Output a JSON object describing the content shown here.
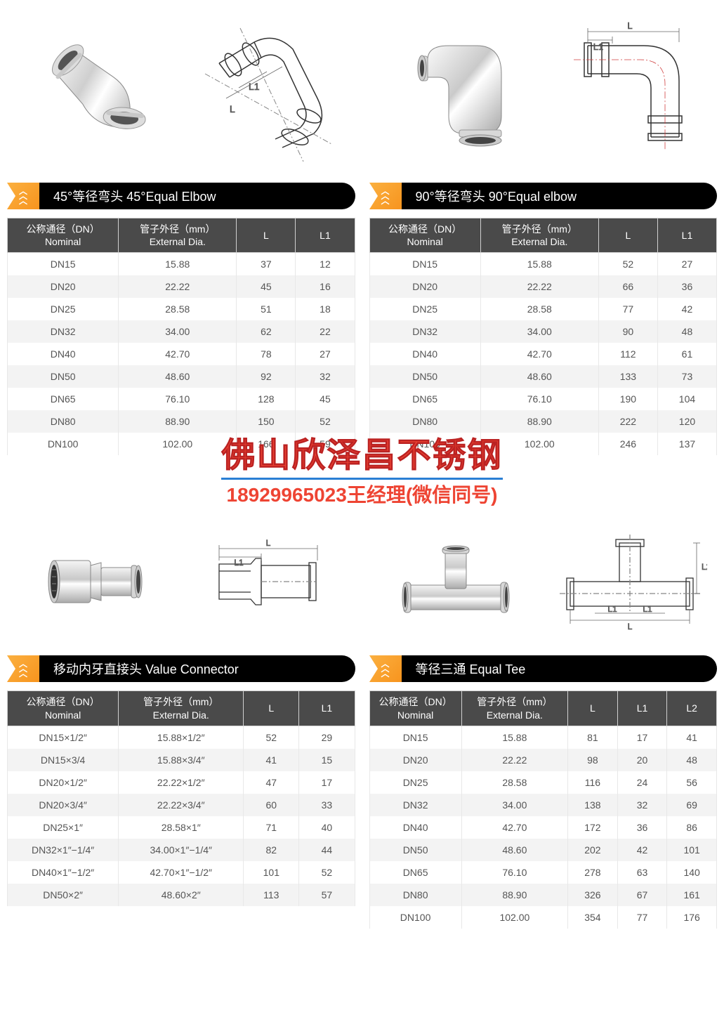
{
  "colors": {
    "header_bg": "#4a4a4a",
    "header_text": "#ffffff",
    "badge_gradient": [
      "#fbb040",
      "#f7941e"
    ],
    "title_bar": "#000000",
    "row_alt": "#f3f3f3",
    "cell_text": "#555555",
    "watermark_text": "#ee4433",
    "watermark_underline": "#2a7fd4",
    "diagram_stroke": "#333333",
    "diagram_fill_light": "#e8e8e8",
    "diagram_fill_dark": "#bcbcbc",
    "dimension_line": "#888888",
    "centerline": "#d04040"
  },
  "sections": {
    "elbow45": {
      "title": "45°等径弯头  45°Equal Elbow",
      "headers": [
        "公称通径（DN）\nNominal",
        "管子外径（mm）\nExternal Dia.",
        "L",
        "L1"
      ],
      "rows": [
        [
          "DN15",
          "15.88",
          "37",
          "12"
        ],
        [
          "DN20",
          "22.22",
          "45",
          "16"
        ],
        [
          "DN25",
          "28.58",
          "51",
          "18"
        ],
        [
          "DN32",
          "34.00",
          "62",
          "22"
        ],
        [
          "DN40",
          "42.70",
          "78",
          "27"
        ],
        [
          "DN50",
          "48.60",
          "92",
          "32"
        ],
        [
          "DN65",
          "76.10",
          "128",
          "45"
        ],
        [
          "DN80",
          "88.90",
          "150",
          "52"
        ],
        [
          "DN100",
          "102.00",
          "166",
          "59"
        ]
      ]
    },
    "elbow90": {
      "title": "90°等径弯头  90°Equal elbow",
      "headers": [
        "公称通径（DN）\nNominal",
        "管子外径（mm）\nExternal Dia.",
        "L",
        "L1"
      ],
      "rows": [
        [
          "DN15",
          "15.88",
          "52",
          "27"
        ],
        [
          "DN20",
          "22.22",
          "66",
          "36"
        ],
        [
          "DN25",
          "28.58",
          "77",
          "42"
        ],
        [
          "DN32",
          "34.00",
          "90",
          "48"
        ],
        [
          "DN40",
          "42.70",
          "112",
          "61"
        ],
        [
          "DN50",
          "48.60",
          "133",
          "73"
        ],
        [
          "DN65",
          "76.10",
          "190",
          "104"
        ],
        [
          "DN80",
          "88.90",
          "222",
          "120"
        ],
        [
          "DN100",
          "102.00",
          "246",
          "137"
        ]
      ]
    },
    "connector": {
      "title": "移动内牙直接头 Value Connector",
      "headers": [
        "公称通径（DN）\nNominal",
        "管子外径（mm）\nExternal Dia.",
        "L",
        "L1"
      ],
      "rows": [
        [
          "DN15×1/2″",
          "15.88×1/2″",
          "52",
          "29"
        ],
        [
          "DN15×3/4",
          "15.88×3/4″",
          "41",
          "15"
        ],
        [
          "DN20×1/2″",
          "22.22×1/2″",
          "47",
          "17"
        ],
        [
          "DN20×3/4″",
          "22.22×3/4″",
          "60",
          "33"
        ],
        [
          "DN25×1″",
          "28.58×1″",
          "71",
          "40"
        ],
        [
          "DN32×1″−1/4″",
          "34.00×1″−1/4″",
          "82",
          "44"
        ],
        [
          "DN40×1″−1/2″",
          "42.70×1″−1/2″",
          "101",
          "52"
        ],
        [
          "DN50×2″",
          "48.60×2″",
          "113",
          "57"
        ]
      ]
    },
    "tee": {
      "title": "等径三通 Equal Tee",
      "headers": [
        "公称通径（DN）\nNominal",
        "管子外径（mm）\nExternal Dia.",
        "L",
        "L1",
        "L2"
      ],
      "rows": [
        [
          "DN15",
          "15.88",
          "81",
          "17",
          "41"
        ],
        [
          "DN20",
          "22.22",
          "98",
          "20",
          "48"
        ],
        [
          "DN25",
          "28.58",
          "116",
          "24",
          "56"
        ],
        [
          "DN32",
          "34.00",
          "138",
          "32",
          "69"
        ],
        [
          "DN40",
          "42.70",
          "172",
          "36",
          "86"
        ],
        [
          "DN50",
          "48.60",
          "202",
          "42",
          "101"
        ],
        [
          "DN65",
          "76.10",
          "278",
          "63",
          "140"
        ],
        [
          "DN80",
          "88.90",
          "326",
          "67",
          "161"
        ],
        [
          "DN100",
          "102.00",
          "354",
          "77",
          "176"
        ]
      ]
    }
  },
  "watermark": {
    "line1": "佛山欣泽昌不锈钢",
    "line2_phone": "18929965023",
    "line2_text": "王经理(微信同号)"
  },
  "diagram_labels": {
    "L": "L",
    "L1": "L1",
    "L2": "L2"
  }
}
